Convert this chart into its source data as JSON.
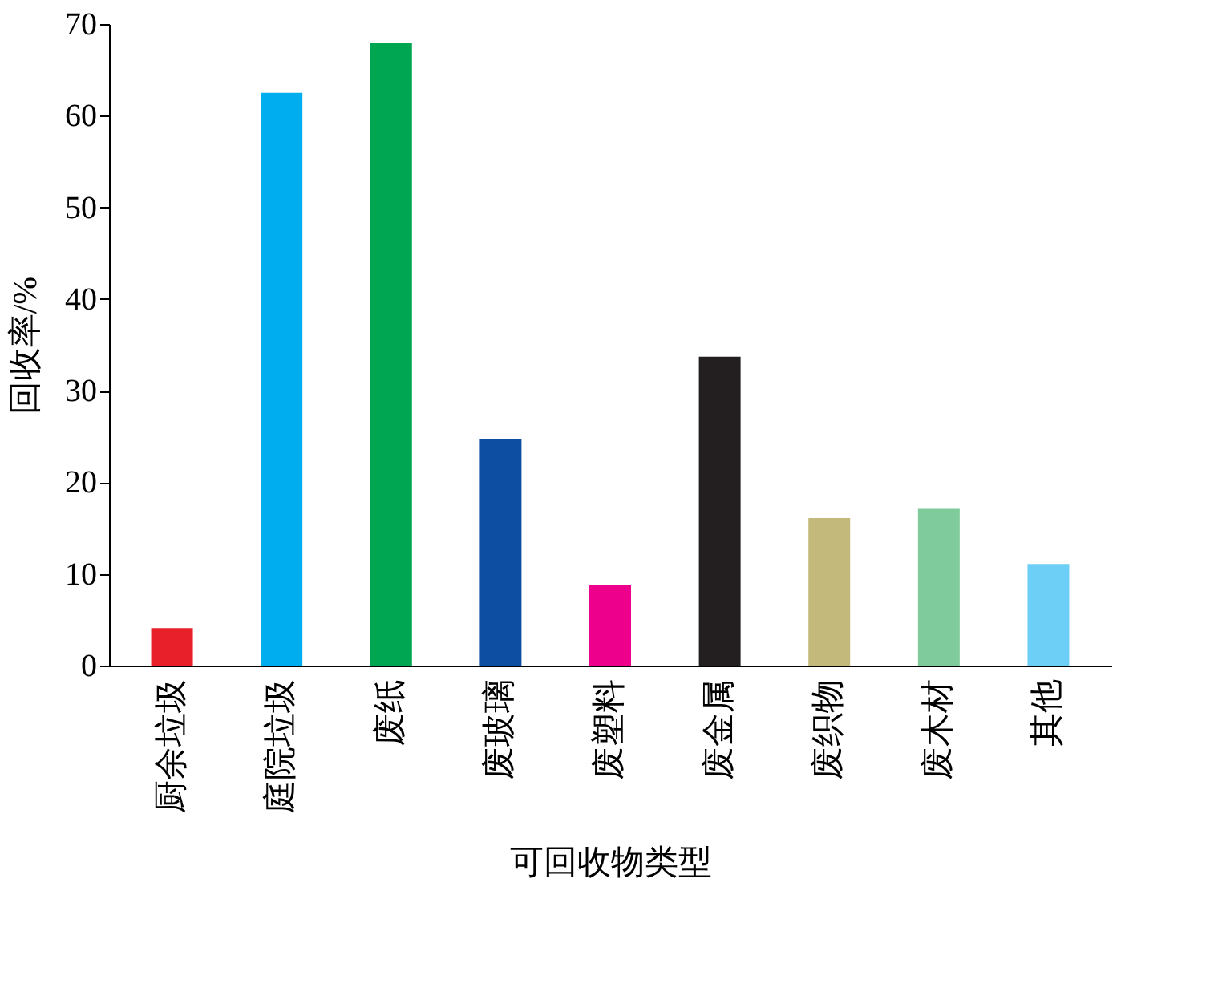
{
  "chart_data": {
    "type": "bar",
    "xlabel": "可回收物类型",
    "ylabel": "回收率/%",
    "categories": [
      "厨余垃圾",
      "庭院垃圾",
      "废纸",
      "废玻璃",
      "废塑料",
      "废金属",
      "废织物",
      "废木材",
      "其他"
    ],
    "values": [
      4.1,
      62.5,
      67.9,
      24.7,
      8.8,
      33.7,
      16.1,
      17.1,
      11.1
    ],
    "colors": [
      "#e8202a",
      "#00aeef",
      "#00a651",
      "#0d4ea2",
      "#ec008c",
      "#231f20",
      "#c2b97a",
      "#7fcb9b",
      "#6dcff6"
    ],
    "ylim": [
      0,
      70
    ],
    "yticks": [
      0,
      10,
      20,
      30,
      40,
      50,
      60,
      70
    ],
    "grid": false
  }
}
